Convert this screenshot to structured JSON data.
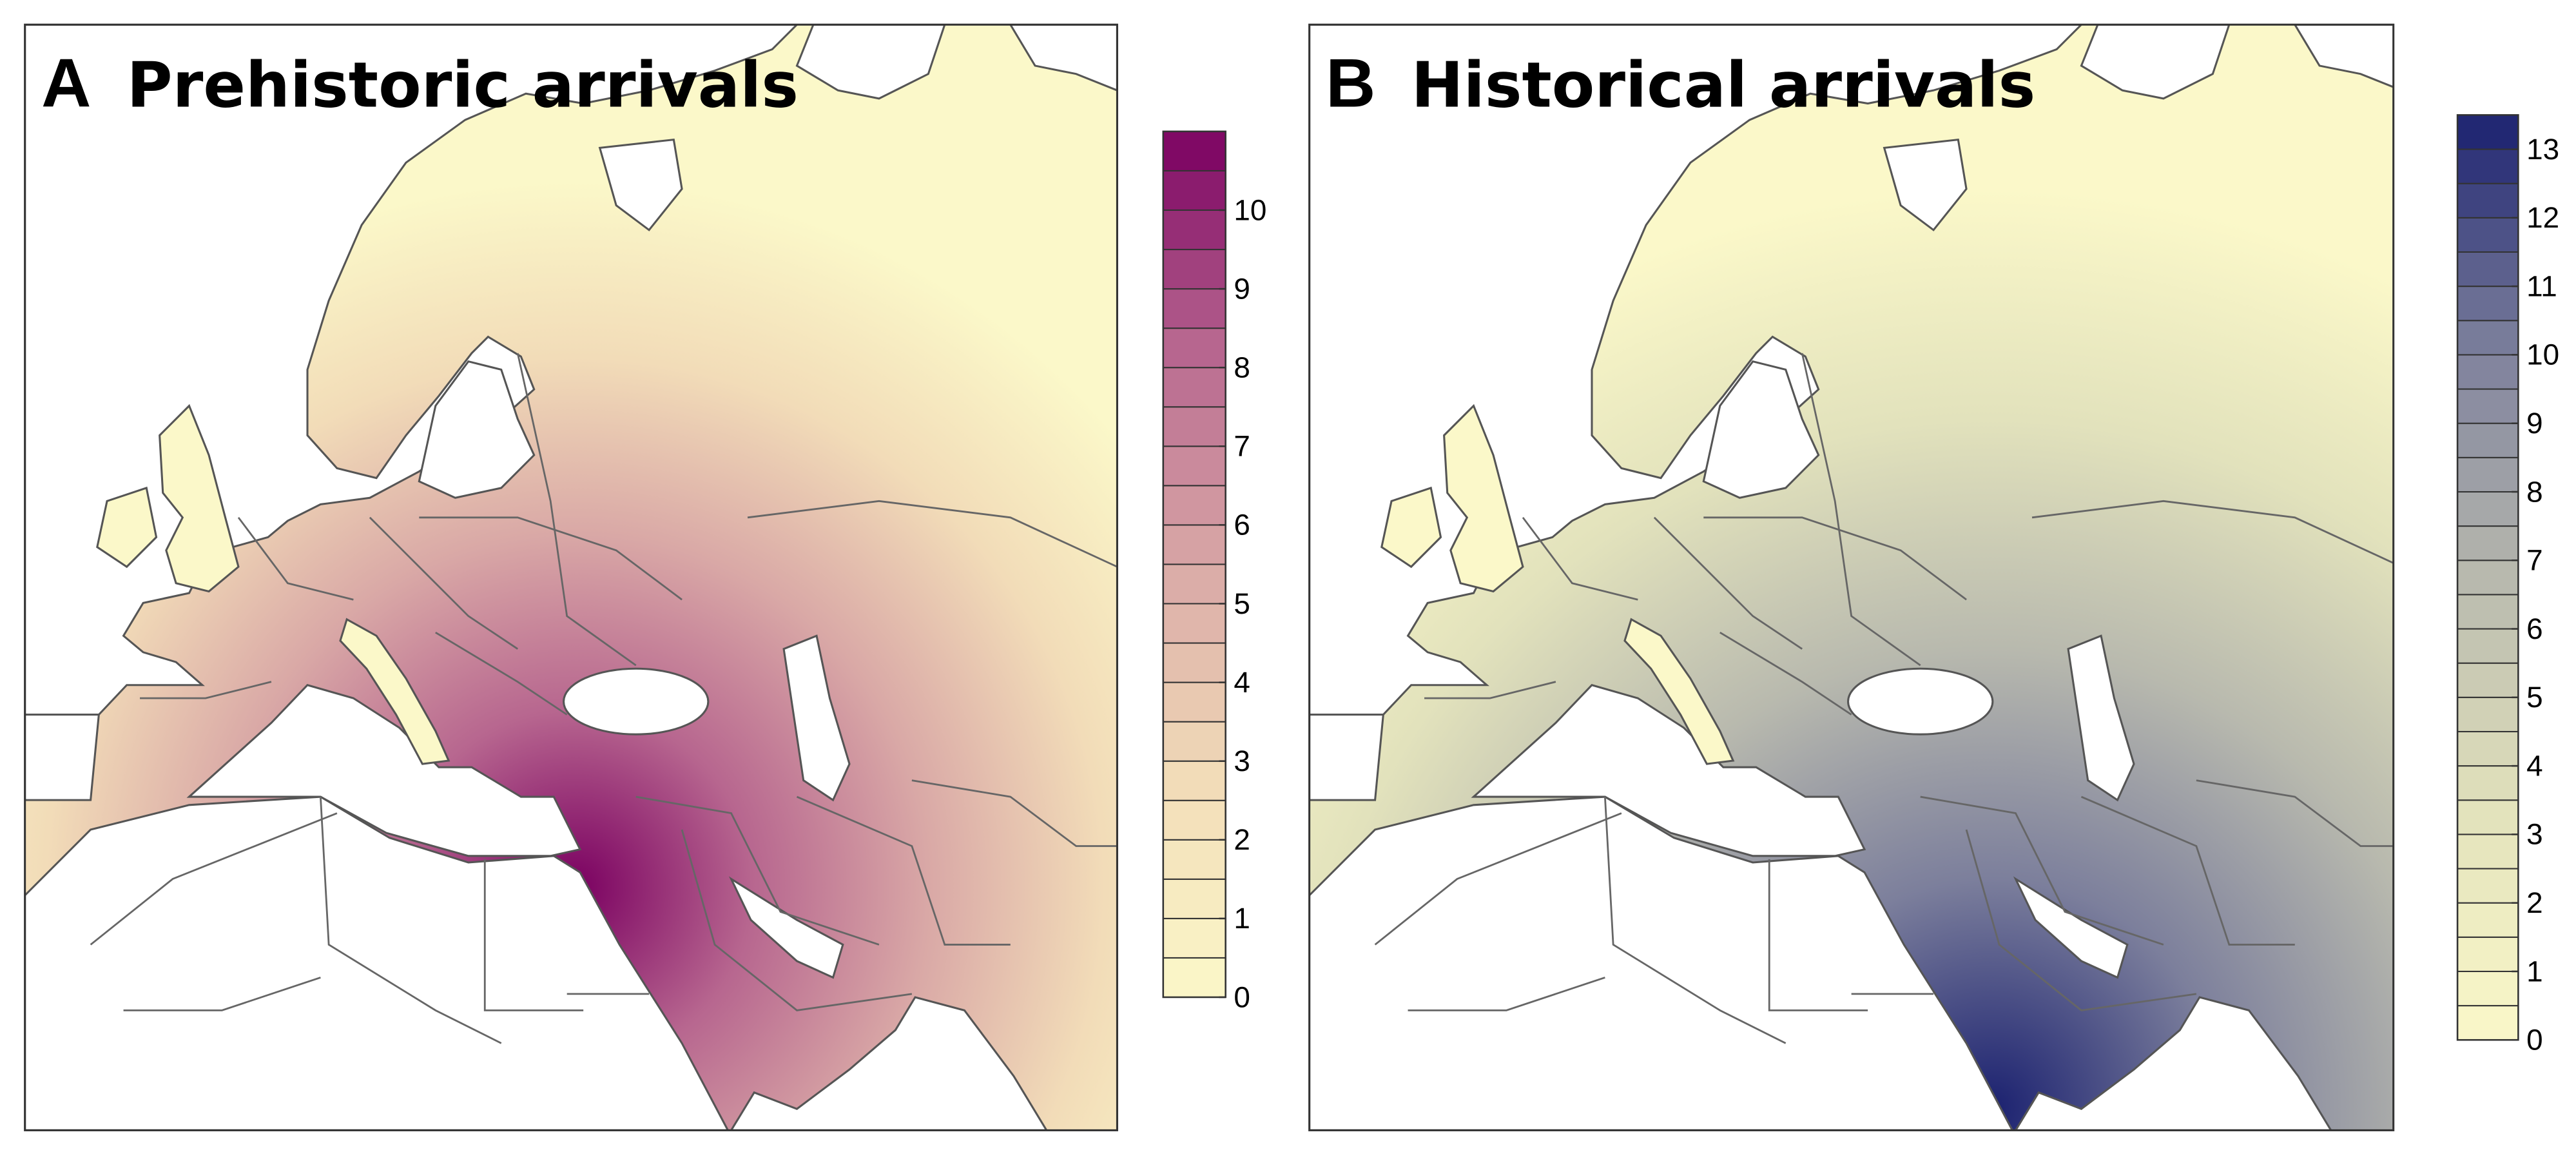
{
  "panels": [
    {
      "label": "A",
      "title": "Prehistoric arrivals",
      "colorbar": {
        "range": [
          0,
          11
        ],
        "step": 0.5,
        "ticks": [
          0,
          1,
          2,
          3,
          4,
          5,
          6,
          7,
          8,
          9,
          10
        ],
        "colors": [
          "#fbf8c9",
          "#f2dcb8",
          "#d9a8a6",
          "#b7668f",
          "#7a0061"
        ]
      }
    },
    {
      "label": "B",
      "title": "Historical arrivals",
      "colorbar": {
        "range": [
          0,
          13.5
        ],
        "step": 0.5,
        "ticks": [
          0,
          1,
          2,
          3,
          4,
          5,
          6,
          7,
          8,
          9,
          10,
          11,
          12,
          13
        ],
        "colors": [
          "#fbf8c9",
          "#e2e2bc",
          "#b8b9ae",
          "#7c7f9c",
          "#1b2170"
        ]
      }
    }
  ]
}
